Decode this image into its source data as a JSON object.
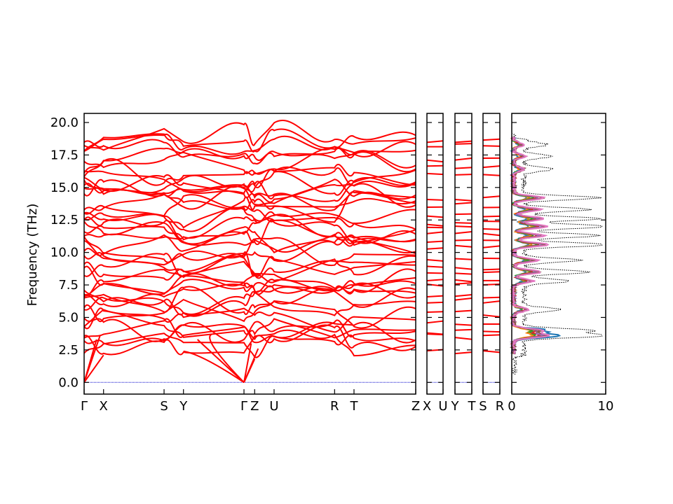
{
  "chart_data": [
    {
      "type": "line",
      "ylabel": "Frequency (THz)",
      "ylim": [
        -0.9,
        20.7
      ],
      "yticks": [
        "0.0",
        "2.5",
        "5.0",
        "7.5",
        "10.0",
        "12.5",
        "15.0",
        "17.5",
        "20.0"
      ],
      "panels": [
        {
          "labels": [
            "Γ",
            "X",
            "S",
            "Y",
            "Γ",
            "Z",
            "U",
            "R",
            "T",
            "Z"
          ],
          "label_pos": [
            0,
            0.0586,
            0.2411,
            0.2996,
            0.4821,
            0.5143,
            0.5729,
            0.7554,
            0.8139,
            1.0
          ]
        },
        {
          "labels": [
            "X",
            "U"
          ],
          "label_pos": [
            0,
            1
          ]
        },
        {
          "labels": [
            "Y",
            "T"
          ],
          "label_pos": [
            0,
            1
          ]
        },
        {
          "labels": [
            "S",
            "R"
          ],
          "label_pos": [
            0,
            1
          ]
        }
      ],
      "band_color": "#ff0000",
      "zero_line_color": "#0000cc",
      "band_levels_short_panels": [
        2.3,
        3.6,
        3.9,
        4.5,
        5.3,
        6.2,
        6.6,
        7.5,
        7.8,
        8.4,
        8.8,
        9.5,
        10.4,
        10.9,
        11.4,
        11.9,
        12.3,
        12.9,
        13.6,
        14.1,
        16.0,
        16.6,
        17.2,
        18.2,
        18.6
      ]
    },
    {
      "type": "line",
      "subtype": "density-of-states",
      "xlim": [
        0,
        10
      ],
      "xticks": [
        "0",
        "10"
      ],
      "ylim": [
        -0.9,
        20.7
      ],
      "total_color": "#000000",
      "series": [
        {
          "color": "#1f77b4"
        },
        {
          "color": "#ff7f0e"
        },
        {
          "color": "#2ca02c"
        },
        {
          "color": "#d62728"
        },
        {
          "color": "#9467bd"
        },
        {
          "color": "#8c564b"
        },
        {
          "color": "#e377c2"
        }
      ]
    }
  ]
}
